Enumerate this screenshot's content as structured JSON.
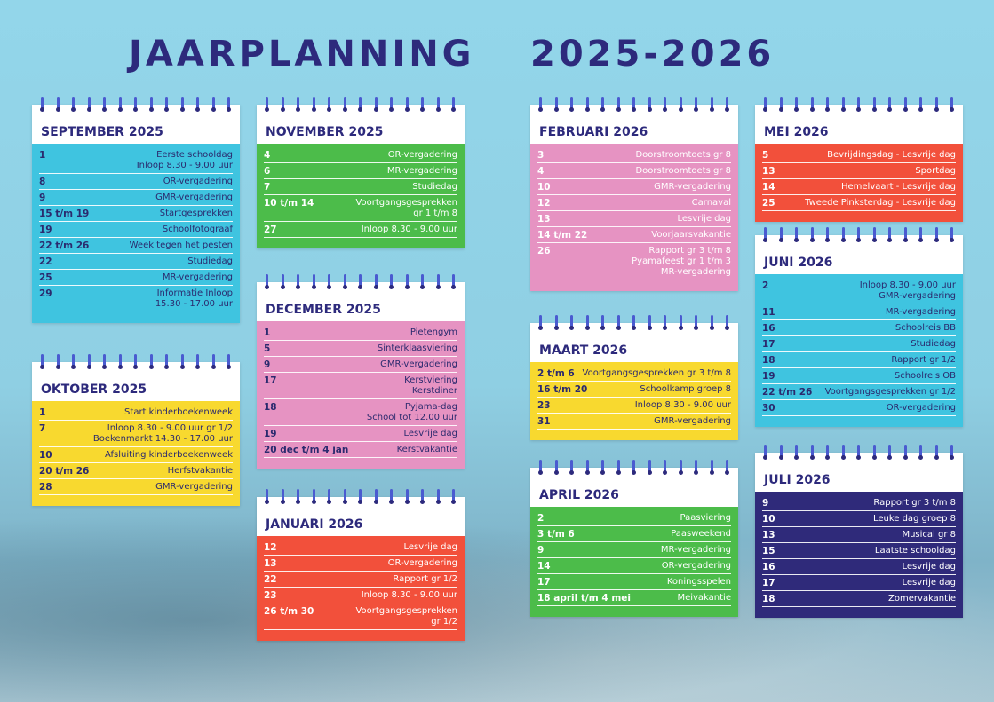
{
  "header": {
    "title": "JAARPLANNING",
    "years": "2025-2026"
  },
  "months": [
    {
      "title": "SEPTEMBER 2025",
      "rows": [
        {
          "date": "1",
          "event": [
            "Eerste schooldag",
            "Inloop 8.30 - 9.00 uur"
          ]
        },
        {
          "date": "8",
          "event": [
            "OR-vergadering"
          ]
        },
        {
          "date": "9",
          "event": [
            "GMR-vergadering"
          ]
        },
        {
          "date": "15 t/m 19",
          "event": [
            "Startgesprekken"
          ]
        },
        {
          "date": "19",
          "event": [
            "Schoolfotograaf"
          ]
        },
        {
          "date": "22 t/m 26",
          "event": [
            "Week tegen het pesten"
          ]
        },
        {
          "date": "22",
          "event": [
            "Studiedag"
          ]
        },
        {
          "date": "25",
          "event": [
            "MR-vergadering"
          ]
        },
        {
          "date": "29",
          "event": [
            "Informatie Inloop",
            "15.30 - 17.00 uur"
          ]
        }
      ]
    },
    {
      "title": "OKTOBER 2025",
      "rows": [
        {
          "date": "1",
          "event": [
            "Start kinderboekenweek"
          ]
        },
        {
          "date": "7",
          "event": [
            "Inloop 8.30 - 9.00 uur gr 1/2",
            "Boekenmarkt 14.30 - 17.00 uur"
          ]
        },
        {
          "date": "10",
          "event": [
            "Afsluiting kinderboekenweek"
          ]
        },
        {
          "date": "20 t/m 26",
          "event": [
            "Herfstvakantie"
          ]
        },
        {
          "date": "28",
          "event": [
            "GMR-vergadering"
          ]
        }
      ]
    },
    {
      "title": "NOVEMBER 2025",
      "rows": [
        {
          "date": "4",
          "event": [
            "OR-vergadering"
          ]
        },
        {
          "date": "6",
          "event": [
            "MR-vergadering"
          ]
        },
        {
          "date": "7",
          "event": [
            "Studiedag"
          ]
        },
        {
          "date": "10 t/m 14",
          "event": [
            "Voortgangsgesprekken",
            "gr 1 t/m 8"
          ]
        },
        {
          "date": "27",
          "event": [
            "Inloop 8.30 - 9.00 uur"
          ]
        }
      ]
    },
    {
      "title": "DECEMBER 2025",
      "rows": [
        {
          "date": "1",
          "event": [
            "Pietengym"
          ]
        },
        {
          "date": "5",
          "event": [
            "Sinterklaasviering"
          ]
        },
        {
          "date": "9",
          "event": [
            "GMR-vergadering"
          ]
        },
        {
          "date": "17",
          "event": [
            "Kerstviering",
            "Kerstdiner"
          ]
        },
        {
          "date": "18",
          "event": [
            "Pyjama-dag",
            "School tot 12.00 uur"
          ]
        },
        {
          "date": "19",
          "event": [
            "Lesvrije dag"
          ]
        },
        {
          "date": "20 dec t/m 4 jan",
          "event": [
            "Kerstvakantie"
          ]
        }
      ]
    },
    {
      "title": "JANUARI 2026",
      "rows": [
        {
          "date": "12",
          "event": [
            "Lesvrije dag"
          ]
        },
        {
          "date": "13",
          "event": [
            "OR-vergadering"
          ]
        },
        {
          "date": "22",
          "event": [
            "Rapport gr 1/2"
          ]
        },
        {
          "date": "23",
          "event": [
            "Inloop 8.30 - 9.00 uur"
          ]
        },
        {
          "date": "26 t/m 30",
          "event": [
            "Voortgangsgesprekken",
            "gr 1/2"
          ]
        }
      ]
    },
    {
      "title": "FEBRUARI 2026",
      "rows": [
        {
          "date": "3",
          "event": [
            "Doorstroomtoets gr 8"
          ]
        },
        {
          "date": "4",
          "event": [
            "Doorstroomtoets gr 8"
          ]
        },
        {
          "date": "10",
          "event": [
            "GMR-vergadering"
          ]
        },
        {
          "date": "12",
          "event": [
            "Carnaval"
          ]
        },
        {
          "date": "13",
          "event": [
            "Lesvrije dag"
          ]
        },
        {
          "date": "14 t/m 22",
          "event": [
            "Voorjaarsvakantie"
          ]
        },
        {
          "date": "26",
          "event": [
            "Rapport gr 3 t/m 8",
            "Pyamafeest gr 1 t/m 3",
            "MR-vergadering"
          ]
        }
      ]
    },
    {
      "title": "MAART 2026",
      "rows": [
        {
          "date": "2 t/m 6",
          "event": [
            "Voortgangsgesprekken gr 3 t/m 8"
          ]
        },
        {
          "date": "16 t/m 20",
          "event": [
            "Schoolkamp groep 8"
          ]
        },
        {
          "date": "23",
          "event": [
            "Inloop 8.30 - 9.00 uur"
          ]
        },
        {
          "date": "31",
          "event": [
            "GMR-vergadering"
          ]
        }
      ]
    },
    {
      "title": "APRIL 2026",
      "rows": [
        {
          "date": "2",
          "event": [
            "Paasviering"
          ]
        },
        {
          "date": "3 t/m 6",
          "event": [
            "Paasweekend"
          ]
        },
        {
          "date": "9",
          "event": [
            "MR-vergadering"
          ]
        },
        {
          "date": "14",
          "event": [
            "OR-vergadering"
          ]
        },
        {
          "date": "17",
          "event": [
            "Koningsspelen"
          ]
        },
        {
          "date": "18 april t/m 4 mei",
          "event": [
            "Meivakantie"
          ]
        }
      ]
    },
    {
      "title": "MEI 2026",
      "rows": [
        {
          "date": "5",
          "event": [
            "Bevrijdingsdag - Lesvrije dag"
          ]
        },
        {
          "date": "13",
          "event": [
            "Sportdag"
          ]
        },
        {
          "date": "14",
          "event": [
            "Hemelvaart - Lesvrije dag"
          ]
        },
        {
          "date": "25",
          "event": [
            "Tweede Pinksterdag - Lesvrije dag"
          ]
        }
      ]
    },
    {
      "title": "JUNI 2026",
      "rows": [
        {
          "date": "2",
          "event": [
            "Inloop 8.30 - 9.00 uur",
            "GMR-vergadering"
          ]
        },
        {
          "date": "11",
          "event": [
            "MR-vergadering"
          ]
        },
        {
          "date": "16",
          "event": [
            "Schoolreis BB"
          ]
        },
        {
          "date": "17",
          "event": [
            "Studiedag"
          ]
        },
        {
          "date": "18",
          "event": [
            "Rapport gr 1/2"
          ]
        },
        {
          "date": "19",
          "event": [
            "Schoolreis OB"
          ]
        },
        {
          "date": "22 t/m 26",
          "event": [
            "Voortgangsgesprekken gr 1/2"
          ]
        },
        {
          "date": "30",
          "event": [
            "OR-vergadering"
          ]
        }
      ]
    },
    {
      "title": "JULI 2026",
      "rows": [
        {
          "date": "9",
          "event": [
            "Rapport gr 3 t/m 8"
          ]
        },
        {
          "date": "10",
          "event": [
            "Leuke dag groep 8"
          ]
        },
        {
          "date": "13",
          "event": [
            "Musical gr 8"
          ]
        },
        {
          "date": "15",
          "event": [
            "Laatste schooldag"
          ]
        },
        {
          "date": "16",
          "event": [
            "Lesvrije dag"
          ]
        },
        {
          "date": "17",
          "event": [
            "Lesvrije dag"
          ]
        },
        {
          "date": "18",
          "event": [
            "Zomervakantie"
          ]
        }
      ]
    }
  ]
}
